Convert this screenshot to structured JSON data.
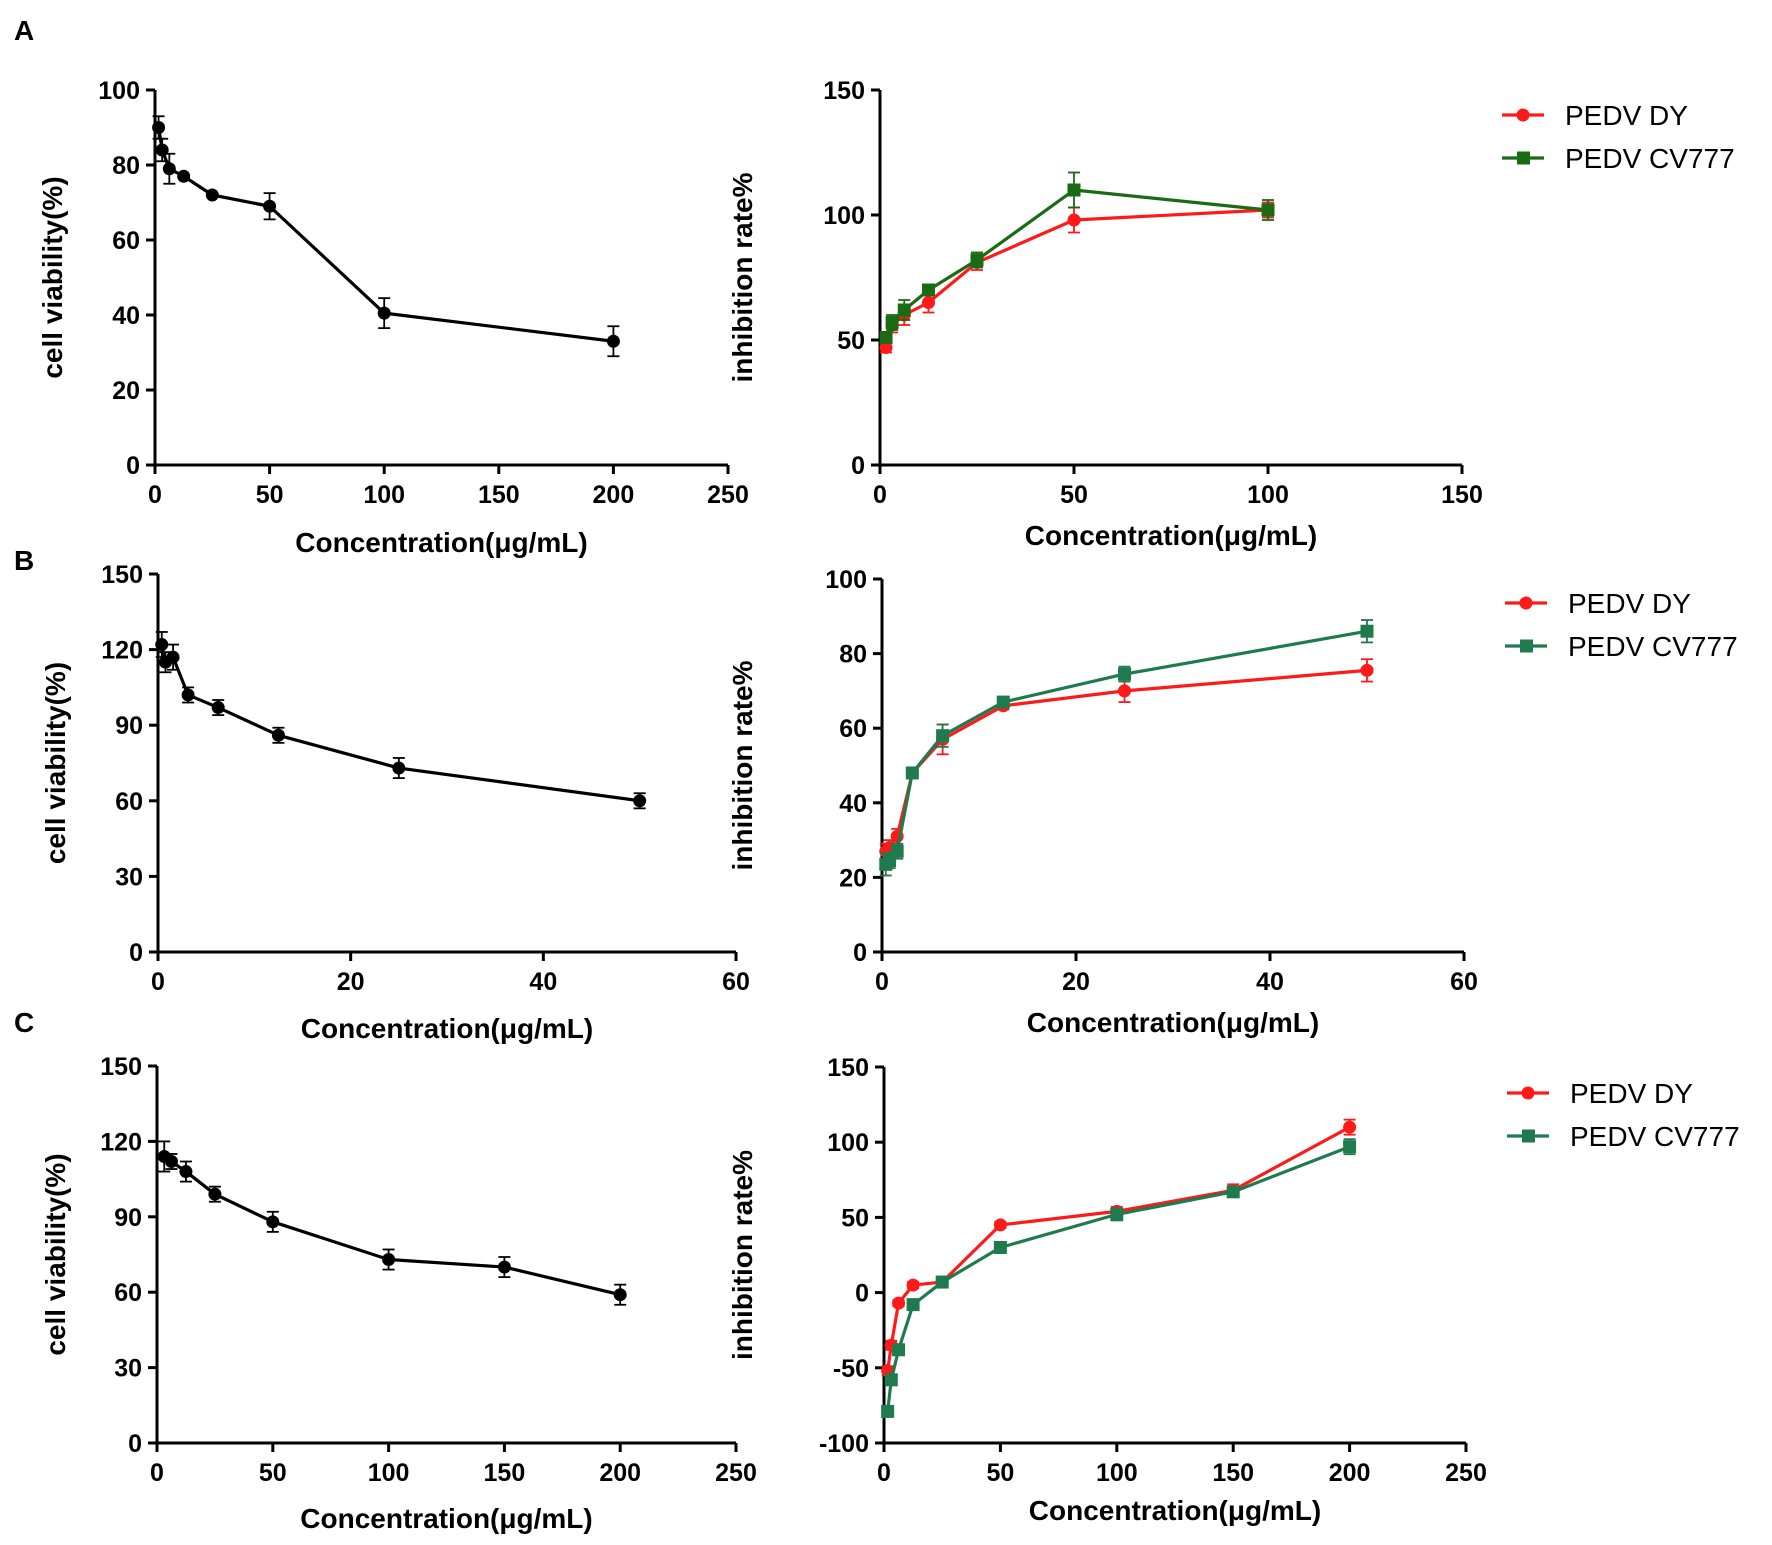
{
  "colors": {
    "black": "#000000",
    "red": "#ff1a1a",
    "green": "#1f7a4d",
    "green_dark": "#1a6b14"
  },
  "panels": [
    {
      "label": "A"
    },
    {
      "label": "B"
    },
    {
      "label": "C"
    }
  ],
  "chart_data": [
    {
      "id": "A-viability",
      "type": "line",
      "panel": "A",
      "xlabel": "Concentration(μg/mL)",
      "ylabel": "cell viability(%)",
      "xlim": [
        0,
        250
      ],
      "ylim": [
        0,
        100
      ],
      "xticks": [
        0,
        50,
        100,
        150,
        200,
        250
      ],
      "yticks": [
        0,
        20,
        40,
        60,
        80,
        100
      ],
      "legend": [],
      "series": [
        {
          "name": "cell viability",
          "color": "#000000",
          "marker": "circle",
          "x": [
            1.5625,
            3.125,
            6.25,
            12.5,
            25,
            50,
            100,
            200
          ],
          "y": [
            90,
            84,
            79,
            77,
            72,
            69,
            40.5,
            33
          ],
          "err": [
            3,
            3,
            4,
            0.5,
            0.5,
            3.5,
            4,
            4
          ]
        }
      ]
    },
    {
      "id": "A-inhibition",
      "type": "line",
      "panel": "A",
      "xlabel": "Concentration(μg/mL)",
      "ylabel": "inhibition rate%",
      "xlim": [
        0,
        150
      ],
      "ylim": [
        0,
        150
      ],
      "xticks": [
        0,
        50,
        100,
        150
      ],
      "yticks": [
        0,
        50,
        100,
        150
      ],
      "legend": [
        "PEDV DY",
        "PEDV CV777"
      ],
      "series": [
        {
          "name": "PEDV DY",
          "color": "#ff1a1a",
          "marker": "circle",
          "x": [
            1.5625,
            3.125,
            6.25,
            12.5,
            25,
            50,
            100
          ],
          "y": [
            47,
            56,
            60,
            65,
            81,
            98,
            102
          ],
          "err": [
            2,
            3,
            4,
            4,
            3,
            5,
            3
          ]
        },
        {
          "name": "PEDV CV777",
          "color": "#1a6b14",
          "marker": "square",
          "x": [
            1.5625,
            3.125,
            6.25,
            12.5,
            25,
            50,
            100
          ],
          "y": [
            51,
            57,
            62,
            70,
            82,
            110,
            102
          ],
          "err": [
            2,
            3,
            4,
            2,
            3,
            7,
            4
          ]
        }
      ]
    },
    {
      "id": "B-viability",
      "type": "line",
      "panel": "B",
      "xlabel": "Concentration(μg/mL)",
      "ylabel": "cell viability(%)",
      "xlim": [
        0,
        60
      ],
      "ylim": [
        0,
        150
      ],
      "xticks": [
        0,
        20,
        40,
        60
      ],
      "yticks": [
        0,
        30,
        60,
        90,
        120,
        150
      ],
      "legend": [],
      "series": [
        {
          "name": "cell viability",
          "color": "#000000",
          "marker": "circle",
          "x": [
            0.39,
            0.78,
            1.5625,
            3.125,
            6.25,
            12.5,
            25,
            50
          ],
          "y": [
            122,
            115,
            117,
            102,
            97,
            86,
            73,
            60
          ],
          "err": [
            5,
            4,
            5,
            3,
            3,
            3,
            4,
            3
          ]
        }
      ]
    },
    {
      "id": "B-inhibition",
      "type": "line",
      "panel": "B",
      "xlabel": "Concentration(μg/mL)",
      "ylabel": "inhibition rate%",
      "xlim": [
        0,
        60
      ],
      "ylim": [
        0,
        100
      ],
      "xticks": [
        0,
        20,
        40,
        60
      ],
      "yticks": [
        0,
        20,
        40,
        60,
        80,
        100
      ],
      "legend": [
        "PEDV  DY",
        "PEDV CV777"
      ],
      "series": [
        {
          "name": "PEDV  DY",
          "color": "#ff1a1a",
          "marker": "circle",
          "x": [
            0.39,
            0.78,
            1.5625,
            3.125,
            6.25,
            12.5,
            25,
            50
          ],
          "y": [
            27,
            28,
            31,
            48,
            57,
            66,
            70,
            75.5
          ],
          "err": [
            2,
            2,
            2,
            1,
            4,
            1,
            3,
            3
          ]
        },
        {
          "name": "PEDV CV777",
          "color": "#1f7a4d",
          "marker": "square",
          "x": [
            0.39,
            0.78,
            1.5625,
            3.125,
            6.25,
            12.5,
            25,
            50
          ],
          "y": [
            23.5,
            24.5,
            27,
            48,
            58,
            67,
            74.5,
            86
          ],
          "err": [
            3,
            2,
            2,
            1,
            3,
            1,
            2,
            3
          ]
        }
      ]
    },
    {
      "id": "C-viability",
      "type": "line",
      "panel": "C",
      "xlabel": "Concentration(μg/mL)",
      "ylabel": "cell viability(%)",
      "xlim": [
        0,
        250
      ],
      "ylim": [
        0,
        150
      ],
      "xticks": [
        0,
        50,
        100,
        150,
        200,
        250
      ],
      "yticks": [
        0,
        30,
        60,
        90,
        120,
        150
      ],
      "legend": [],
      "series": [
        {
          "name": "cell viability",
          "color": "#000000",
          "marker": "circle",
          "x": [
            3.125,
            6.25,
            12.5,
            25,
            50,
            100,
            150,
            200
          ],
          "y": [
            114,
            112,
            108,
            99,
            88,
            73,
            70,
            59
          ],
          "err": [
            6,
            3,
            4,
            3,
            4,
            4,
            4,
            4
          ]
        }
      ]
    },
    {
      "id": "C-inhibition",
      "type": "line",
      "panel": "C",
      "xlabel": "Concentration(μg/mL)",
      "ylabel": "inhibition rate%",
      "xlim": [
        0,
        250
      ],
      "ylim": [
        -100,
        150
      ],
      "xticks": [
        0,
        50,
        100,
        150,
        200,
        250
      ],
      "yticks": [
        -100,
        -50,
        0,
        50,
        100,
        150
      ],
      "legend": [
        "PEDV DY",
        "PEDV CV777"
      ],
      "series": [
        {
          "name": "PEDV DY",
          "color": "#ff1a1a",
          "marker": "circle",
          "x": [
            1.5625,
            3.125,
            6.25,
            12.5,
            25,
            50,
            100,
            150,
            200
          ],
          "y": [
            -52,
            -35,
            -7,
            5,
            7,
            45,
            54,
            68,
            110
          ],
          "err": [
            3,
            3,
            2,
            2,
            2,
            2,
            3,
            4,
            5
          ]
        },
        {
          "name": "PEDV CV777",
          "color": "#1f7a4d",
          "marker": "square",
          "x": [
            1.5625,
            3.125,
            6.25,
            12.5,
            25,
            50,
            100,
            150,
            200
          ],
          "y": [
            -79,
            -58,
            -38,
            -8,
            7,
            30,
            52,
            67,
            97
          ],
          "err": [
            3,
            3,
            3,
            2,
            2,
            2,
            4,
            3,
            5
          ]
        }
      ]
    }
  ]
}
